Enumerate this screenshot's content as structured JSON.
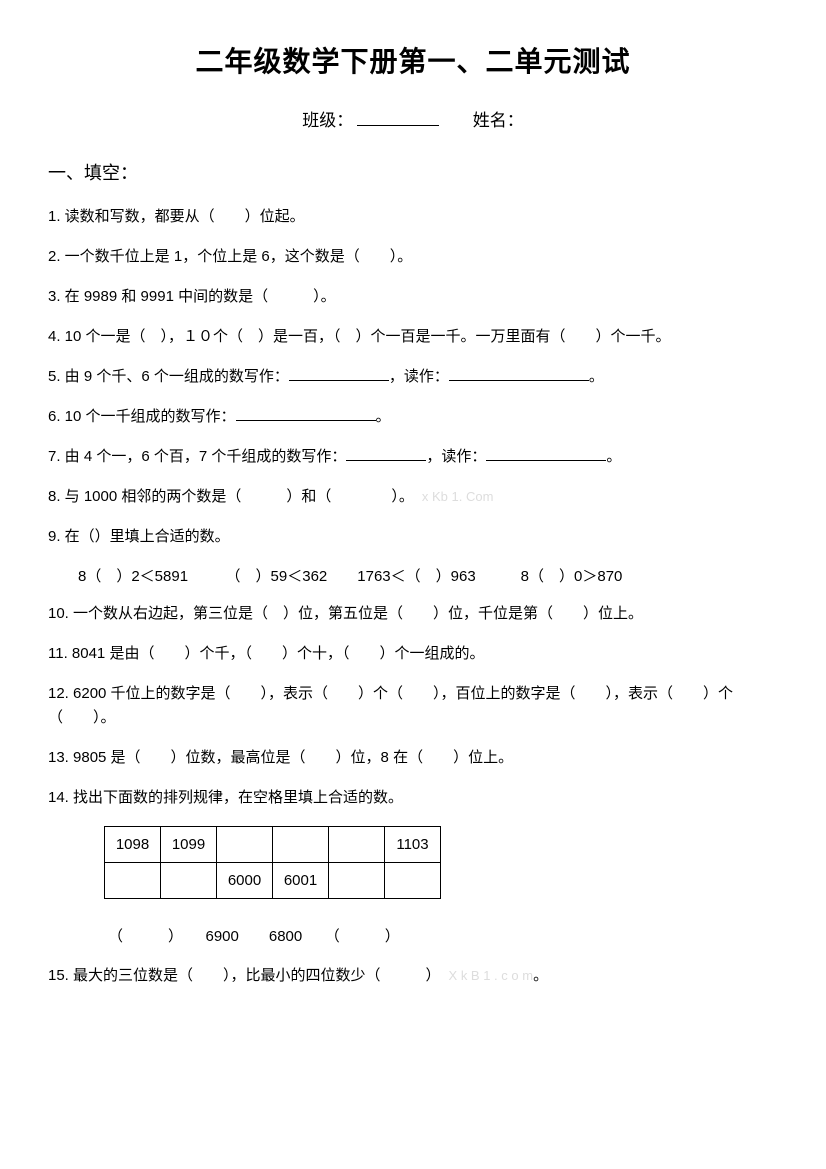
{
  "title": "二年级数学下册第一、二单元测试",
  "info": {
    "class_label": "班级：",
    "name_label": "姓名："
  },
  "section1": {
    "heading": "一、填空：",
    "q1": "1. 读数和写数，都要从（　　）位起。",
    "q2": "2. 一个数千位上是 1，个位上是 6，这个数是（　　）。",
    "q3": "3. 在 9989 和 9991 中间的数是（　　　）。",
    "q4": "4. 10 个一是（　），１０个（　）是一百，（　）个一百是一千。一万里面有（　　）个一千。",
    "q5_a": "5. 由 9 个千、6 个一组成的数写作：",
    "q5_b": "，读作：",
    "q5_c": "。",
    "q6_a": "6. 10 个一千组成的数写作：",
    "q6_b": "。",
    "q7_a": "7. 由 4 个一，6 个百，7 个千组成的数写作：",
    "q7_b": "，读作：",
    "q7_c": "。",
    "q8": "8. 与 1000 相邻的两个数是（　　　）和（　　　　）。",
    "q8_wm": "x Kb 1. Com",
    "q9": "9. 在（）里填上合适的数。",
    "q9_sub": "8（　）2＜5891　　　（　）59＜362　　1763＜（　）963　　　8（　）0＞870",
    "q10": "10. 一个数从右边起，第三位是（　）位，第五位是（　　）位，千位是第（　　）位上。",
    "q11": "11. 8041 是由（　　）个千，（　　）个十，（　　）个一组成的。",
    "q12": "12. 6200 千位上的数字是（　　），表示（　　）个（　　），百位上的数字是（　　），表示（　　）个（　　）。",
    "q13": "13. 9805 是（　　）位数，最高位是（　　）位，8 在（　　）位上。",
    "q14": "14. 找出下面数的排列规律，在空格里填上合适的数。",
    "table": {
      "r1c1": "1098",
      "r1c2": "1099",
      "r1c3": "",
      "r1c4": "",
      "r1c5": "",
      "r1c6": "1103",
      "r2c1": "",
      "r2c2": "",
      "r2c3": "6000",
      "r2c4": "6001",
      "r2c5": "",
      "r2c6": ""
    },
    "seq": "（　　　）　　6900　　6800　　（　　　）",
    "q15": "15. 最大的三位数是（　　），比最小的四位数少（　　　）",
    "q15_wm": "X k B 1 . c o m",
    "q15_end": "。"
  }
}
